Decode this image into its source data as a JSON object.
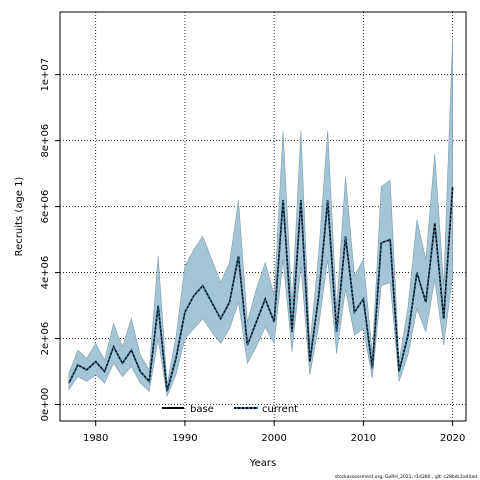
{
  "chart_data": {
    "type": "line",
    "xlabel": "Years",
    "ylabel": "Recruits (age 1)",
    "xlim": [
      1976,
      2021.5
    ],
    "ylim": [
      -500000,
      11900000
    ],
    "x_ticks": [
      1980,
      1990,
      2000,
      2010,
      2020
    ],
    "y_ticks": [
      0,
      2000000,
      4000000,
      6000000,
      8000000,
      10000000
    ],
    "y_tick_labels": [
      "0e+00",
      "2e+06",
      "4e+06",
      "6e+06",
      "8e+06",
      "1e+07"
    ],
    "grid": true,
    "legend": {
      "placement": "bottom-center",
      "entries": [
        "base",
        "current"
      ]
    },
    "x": [
      1977,
      1978,
      1979,
      1980,
      1981,
      1982,
      1983,
      1984,
      1985,
      1986,
      1987,
      1988,
      1989,
      1990,
      1991,
      1992,
      1993,
      1994,
      1995,
      1996,
      1997,
      1998,
      1999,
      2000,
      2001,
      2002,
      2003,
      2004,
      2005,
      2006,
      2007,
      2008,
      2009,
      2010,
      2011,
      2012,
      2013,
      2014,
      2015,
      2016,
      2017,
      2018,
      2019,
      2020
    ],
    "series": [
      {
        "name": "base",
        "line_style": "solid",
        "values": [
          650000,
          1200000,
          1050000,
          1300000,
          1000000,
          1750000,
          1250000,
          1650000,
          1000000,
          700000,
          3000000,
          400000,
          1400000,
          2800000,
          3300000,
          3600000,
          3100000,
          2600000,
          3100000,
          4500000,
          1800000,
          2500000,
          3200000,
          2500000,
          6200000,
          2200000,
          6200000,
          1300000,
          3300000,
          6200000,
          2200000,
          5100000,
          2800000,
          3200000,
          1100000,
          4900000,
          5000000,
          1000000,
          2100000,
          4000000,
          3100000,
          5500000,
          2600000,
          6600000
        ]
      },
      {
        "name": "current",
        "line_style": "dotted",
        "values": [
          650000,
          1200000,
          1050000,
          1300000,
          1000000,
          1750000,
          1250000,
          1650000,
          1000000,
          700000,
          3000000,
          400000,
          1400000,
          2800000,
          3300000,
          3600000,
          3100000,
          2600000,
          3100000,
          4500000,
          1800000,
          2500000,
          3200000,
          2500000,
          6200000,
          2200000,
          6200000,
          1300000,
          3300000,
          6200000,
          2200000,
          5100000,
          2800000,
          3200000,
          1100000,
          4900000,
          5000000,
          1000000,
          2100000,
          4000000,
          3100000,
          5500000,
          2600000,
          6600000
        ]
      }
    ],
    "interval": {
      "lower": [
        450000,
        850000,
        700000,
        900000,
        650000,
        1250000,
        850000,
        1150000,
        650000,
        400000,
        2000000,
        250000,
        900000,
        2000000,
        2300000,
        2600000,
        2200000,
        1850000,
        2300000,
        3100000,
        1250000,
        1750000,
        2350000,
        1850000,
        4400000,
        1600000,
        4200000,
        900000,
        2400000,
        4400000,
        1550000,
        3500000,
        2100000,
        2300000,
        800000,
        3600000,
        3700000,
        700000,
        1500000,
        2900000,
        2200000,
        3800000,
        1800000,
        3900000
      ],
      "upper": [
        950000,
        1650000,
        1400000,
        1850000,
        1350000,
        2450000,
        1750000,
        2600000,
        1500000,
        1050000,
        4500000,
        600000,
        2050000,
        4200000,
        4700000,
        5100000,
        4400000,
        3700000,
        4300000,
        6200000,
        2500000,
        3500000,
        4300000,
        3300000,
        8300000,
        3000000,
        8300000,
        1800000,
        4600000,
        8300000,
        2900000,
        6900000,
        3900000,
        4400000,
        1500000,
        6600000,
        6800000,
        1300000,
        2950000,
        5600000,
        4400000,
        7600000,
        3600000,
        11100000
      ]
    },
    "band_color": "#a4c5d6",
    "band_edge_color": "#7d9cad"
  },
  "footer": "stockassessment.org, GoRH_2021, r14280 , git: c28bdc2a44ad"
}
